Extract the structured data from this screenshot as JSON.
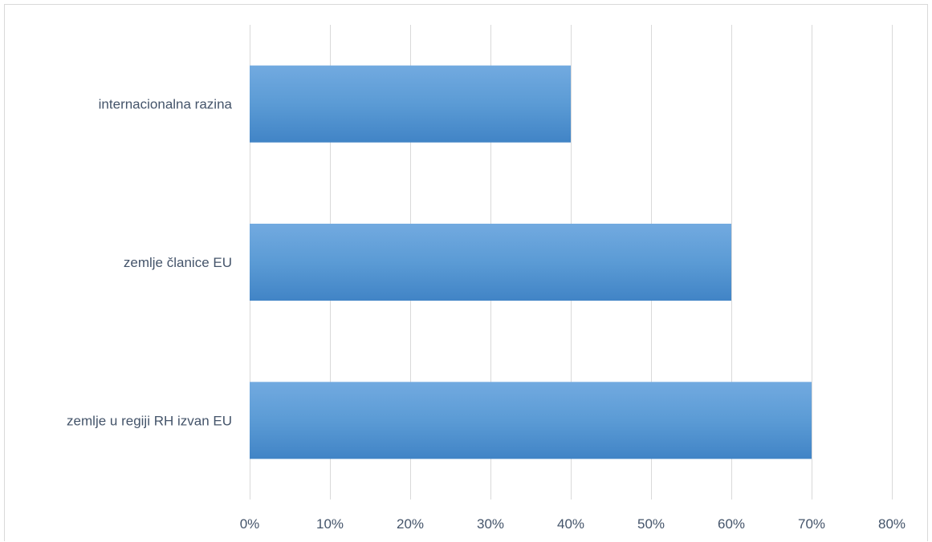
{
  "chart_data": {
    "type": "bar",
    "orientation": "horizontal",
    "categories": [
      "internacionalna razina",
      "zemlje članice EU",
      "zemlje u regiji RH izvan EU"
    ],
    "values": [
      40,
      60,
      70
    ],
    "xlim": [
      0,
      80
    ],
    "x_ticks": [
      0,
      10,
      20,
      30,
      40,
      50,
      60,
      70,
      80
    ],
    "tick_labels": [
      "0%",
      "10%",
      "20%",
      "30%",
      "40%",
      "50%",
      "60%",
      "70%",
      "80%"
    ],
    "title": "",
    "xlabel": "",
    "ylabel": "",
    "grid": "vertical",
    "legend": "none",
    "colors": {
      "bar_top": "#72aae0",
      "bar_mid": "#5b9bd5",
      "bar_bottom": "#4184c6",
      "grid": "#d9d9d9",
      "text": "#44546a"
    }
  }
}
